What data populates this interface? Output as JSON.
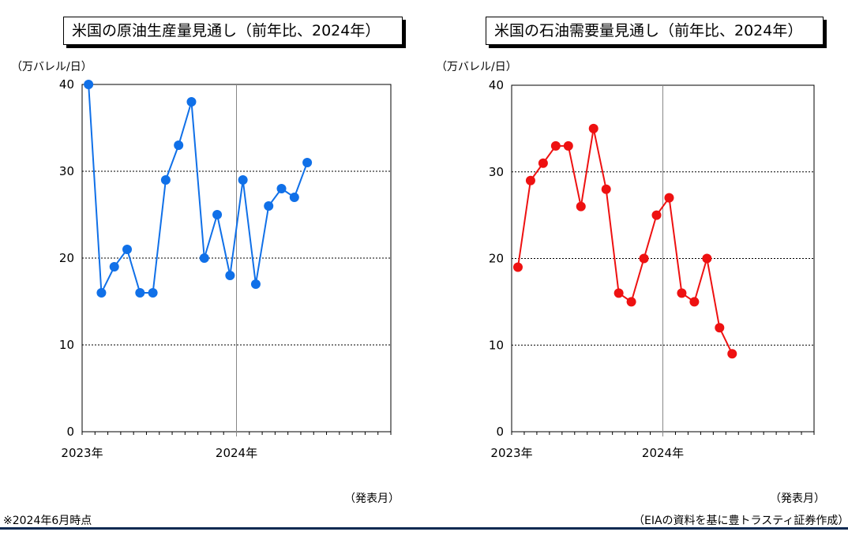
{
  "charts": {
    "left": {
      "title": "米国の原油生産量見通し（前年比、2024年）",
      "unit_label": "（万バレル/日）",
      "x_unit_label": "（発表月）"
    },
    "right": {
      "title": "米国の石油需要量見通し（前年比、2024年）",
      "unit_label": "（万バレル/日）",
      "x_unit_label": "（発表月）"
    }
  },
  "notes": {
    "left": "※2024年6月時点",
    "right": "（EIAの資料を基に豊トラスティ証券作成）"
  },
  "colors": {
    "left_series": "#1070e8",
    "right_series": "#ee1111",
    "footer_rule": "#0d2a52"
  },
  "chart_data": [
    {
      "type": "line",
      "title": "米国の原油生産量見通し（前年比、2024年）",
      "ylabel": "（万バレル/日）",
      "xlabel": "（発表月）",
      "x": [
        "2023-01",
        "2023-02",
        "2023-03",
        "2023-04",
        "2023-05",
        "2023-06",
        "2023-07",
        "2023-08",
        "2023-09",
        "2023-10",
        "2023-11",
        "2023-12",
        "2024-01",
        "2024-02",
        "2024-03",
        "2024-04",
        "2024-05",
        "2024-06"
      ],
      "values": [
        40,
        16,
        19,
        21,
        16,
        16,
        29,
        33,
        38,
        20,
        25,
        18,
        29,
        17,
        26,
        28,
        27,
        31
      ],
      "x_tick_labels": [
        "2023年",
        "2024年"
      ],
      "x_range": [
        "2023-01",
        "2024-12"
      ],
      "yticks": [
        0,
        10,
        20,
        30,
        40
      ],
      "ylim": [
        0,
        40
      ],
      "grid": "horizontal dashed at 10, 20, 30; vertical line at 2024年",
      "legend": "none",
      "color": "#1070e8"
    },
    {
      "type": "line",
      "title": "米国の石油需要量見通し（前年比、2024年）",
      "ylabel": "（万バレル/日）",
      "xlabel": "（発表月）",
      "x": [
        "2023-01",
        "2023-02",
        "2023-03",
        "2023-04",
        "2023-05",
        "2023-06",
        "2023-07",
        "2023-08",
        "2023-09",
        "2023-10",
        "2023-11",
        "2023-12",
        "2024-01",
        "2024-02",
        "2024-03",
        "2024-04",
        "2024-05",
        "2024-06"
      ],
      "values": [
        19,
        29,
        31,
        33,
        33,
        26,
        35,
        28,
        16,
        15,
        20,
        25,
        27,
        16,
        15,
        20,
        12,
        9
      ],
      "x_tick_labels": [
        "2023年",
        "2024年"
      ],
      "x_range": [
        "2023-01",
        "2024-12"
      ],
      "yticks": [
        0,
        10,
        20,
        30,
        40
      ],
      "ylim": [
        0,
        40
      ],
      "grid": "horizontal dashed at 10, 20, 30; vertical line at 2024年",
      "legend": "none",
      "color": "#ee1111"
    }
  ]
}
